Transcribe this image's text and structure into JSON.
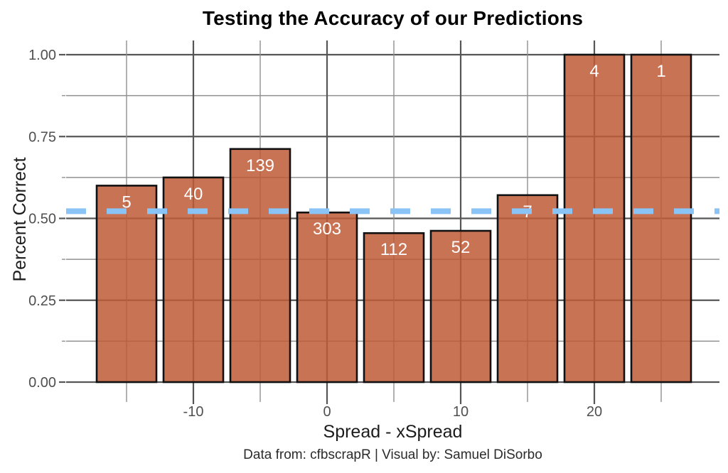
{
  "chart_data": {
    "type": "bar",
    "title": "Testing the Accuracy of our Predictions",
    "xlabel": "Spread - xSpread",
    "ylabel": "Percent Correct",
    "caption": "Data from: cfbscrapR | Visual by: Samuel DiSorbo",
    "categories": [
      -15,
      -10,
      -5,
      0,
      5,
      10,
      15,
      20,
      25
    ],
    "values": [
      0.6,
      0.625,
      0.712,
      0.518,
      0.455,
      0.462,
      0.571,
      1.0,
      1.0
    ],
    "bar_count_labels": [
      "5",
      "40",
      "139",
      "303",
      "112",
      "52",
      "7",
      "4",
      "1"
    ],
    "reference_line": {
      "value": 0.522,
      "style": "dashed"
    },
    "x_ticks": {
      "values": [
        -10,
        0,
        10,
        20
      ],
      "labels": [
        "-10",
        "0",
        "10",
        "20"
      ]
    },
    "x_minor_ticks": [
      -15,
      -5,
      5,
      15,
      25
    ],
    "y_ticks": {
      "values": [
        0,
        0.25,
        0.5,
        0.75,
        1
      ],
      "labels": [
        "0.00",
        "0.25",
        "0.50",
        "0.75",
        "1.00"
      ]
    },
    "y_minor_ticks": [
      0.125,
      0.375,
      0.625,
      0.875
    ],
    "ylim": [
      0,
      1
    ],
    "xlim": [
      -19.5,
      29.5
    ],
    "grid": "on",
    "legend": "none",
    "colors": {
      "background": "#ffffff",
      "bar_fill": "#BF5B37",
      "bar_fill_opacity": 0.85,
      "bar_stroke": "#111111",
      "grid_major": "#565656",
      "grid_minor": "#909090",
      "reference_line": "#8AC3F5",
      "tick_label": "#4f4f4f",
      "title": "#000000"
    }
  }
}
